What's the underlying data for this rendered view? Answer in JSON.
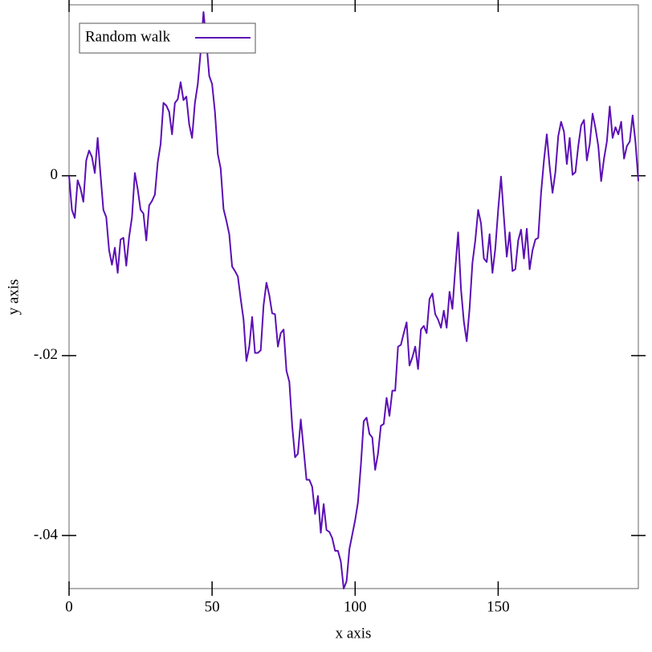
{
  "chart_data": {
    "type": "line",
    "xlabel": "x axis",
    "ylabel": "y axis",
    "x": [
      0,
      1,
      2,
      3,
      4,
      5,
      6,
      7,
      8,
      9,
      10,
      11,
      12,
      13,
      14,
      15,
      16,
      17,
      18,
      19,
      20,
      21,
      22,
      23,
      24,
      25,
      26,
      27,
      28,
      29,
      30,
      31,
      32,
      33,
      34,
      35,
      36,
      37,
      38,
      39,
      40,
      41,
      42,
      43,
      44,
      45,
      46,
      47,
      48,
      49,
      50,
      51,
      52,
      53,
      54,
      55,
      56,
      57,
      58,
      59,
      60,
      61,
      62,
      63,
      64,
      65,
      66,
      67,
      68,
      69,
      70,
      71,
      72,
      73,
      74,
      75,
      76,
      77,
      78,
      79,
      80,
      81,
      82,
      83,
      84,
      85,
      86,
      87,
      88,
      89,
      90,
      91,
      92,
      93,
      94,
      95,
      96,
      97,
      98,
      99,
      100,
      101,
      102,
      103,
      104,
      105,
      106,
      107,
      108,
      109,
      110,
      111,
      112,
      113,
      114,
      115,
      116,
      117,
      118,
      119,
      120,
      121,
      122,
      123,
      124,
      125,
      126,
      127,
      128,
      129,
      130,
      131,
      132,
      133,
      134,
      135,
      136,
      137,
      138,
      139,
      140,
      141,
      142,
      143,
      144,
      145,
      146,
      147,
      148,
      149,
      150,
      151,
      152,
      153,
      154,
      155,
      156,
      157,
      158,
      159,
      160,
      161,
      162,
      163,
      164,
      165,
      166,
      167,
      168,
      169,
      170,
      171,
      172,
      173,
      174,
      175,
      176,
      177,
      178,
      179,
      180,
      181,
      182,
      183,
      184,
      185,
      186,
      187,
      188,
      189,
      190,
      191,
      192,
      193,
      194,
      195,
      196,
      197,
      198,
      199
    ],
    "series": [
      {
        "name": "Random walk",
        "color": "#5b0fb5",
        "values": [
          0,
          -0.0038,
          -0.0047,
          -0.0005,
          -0.0014,
          -0.0029,
          0.0017,
          0.0028,
          0.0021,
          0.0003,
          0.0042,
          0.0001,
          -0.0038,
          -0.0046,
          -0.0083,
          -0.0099,
          -0.008,
          -0.0108,
          -0.0071,
          -0.0069,
          -0.01,
          -0.0068,
          -0.0046,
          0.0003,
          -0.0015,
          -0.0038,
          -0.0042,
          -0.0072,
          -0.0033,
          -0.0028,
          -0.0021,
          0.0015,
          0.0035,
          0.0081,
          0.0078,
          0.0071,
          0.0046,
          0.0081,
          0.0085,
          0.0104,
          0.0084,
          0.0088,
          0.0057,
          0.0042,
          0.0081,
          0.0102,
          0.0138,
          0.0182,
          0.0149,
          0.0111,
          0.0102,
          0.0071,
          0.0024,
          0.0008,
          -0.0037,
          -0.005,
          -0.0065,
          -0.0101,
          -0.0106,
          -0.0112,
          -0.0137,
          -0.016,
          -0.0206,
          -0.019,
          -0.0157,
          -0.0197,
          -0.0197,
          -0.0194,
          -0.0144,
          -0.0119,
          -0.0133,
          -0.0153,
          -0.0154,
          -0.019,
          -0.0175,
          -0.0171,
          -0.0217,
          -0.0229,
          -0.0278,
          -0.0313,
          -0.0309,
          -0.0271,
          -0.0304,
          -0.0338,
          -0.0338,
          -0.0346,
          -0.0376,
          -0.0356,
          -0.0397,
          -0.0365,
          -0.0394,
          -0.0396,
          -0.0403,
          -0.0417,
          -0.0417,
          -0.0429,
          -0.0459,
          -0.0451,
          -0.0415,
          -0.0399,
          -0.0383,
          -0.0363,
          -0.0322,
          -0.0273,
          -0.0269,
          -0.0287,
          -0.0291,
          -0.0327,
          -0.0309,
          -0.0278,
          -0.0276,
          -0.0247,
          -0.0267,
          -0.0239,
          -0.0239,
          -0.019,
          -0.0188,
          -0.0175,
          -0.0163,
          -0.0211,
          -0.0202,
          -0.019,
          -0.0215,
          -0.0171,
          -0.0167,
          -0.0175,
          -0.0137,
          -0.0131,
          -0.0154,
          -0.016,
          -0.0169,
          -0.015,
          -0.0169,
          -0.0129,
          -0.0148,
          -0.0104,
          -0.0063,
          -0.0126,
          -0.0162,
          -0.0184,
          -0.0148,
          -0.0097,
          -0.0072,
          -0.0038,
          -0.0053,
          -0.0092,
          -0.0096,
          -0.0065,
          -0.0108,
          -0.0081,
          -0.0038,
          -0.0001,
          -0.0046,
          -0.009,
          -0.0063,
          -0.0106,
          -0.0104,
          -0.0072,
          -0.006,
          -0.0092,
          -0.0059,
          -0.0104,
          -0.0083,
          -0.0071,
          -0.0069,
          -0.0019,
          0.0017,
          0.0046,
          0.001,
          -0.0019,
          0.0004,
          0.0044,
          0.006,
          0.0049,
          0.0013,
          0.0042,
          0.0001,
          0.0004,
          0.0033,
          0.0056,
          0.0062,
          0.0017,
          0.0035,
          0.0069,
          0.0053,
          0.0033,
          -0.0006,
          0.0019,
          0.0038,
          0.0077,
          0.0042,
          0.0054,
          0.0046,
          0.006,
          0.0019,
          0.0033,
          0.0038,
          0.0067,
          0.0037,
          -0.0006
        ]
      }
    ],
    "xlim": [
      0,
      199
    ],
    "ylim": [
      -0.0459,
      0.019
    ],
    "xticks": [
      0,
      50,
      100,
      150
    ],
    "yticks": [
      {
        "value": 0,
        "label": "0"
      },
      {
        "value": -0.02,
        "label": "-.02"
      },
      {
        "value": -0.04,
        "label": "-.04"
      }
    ],
    "legend": "top-left"
  }
}
